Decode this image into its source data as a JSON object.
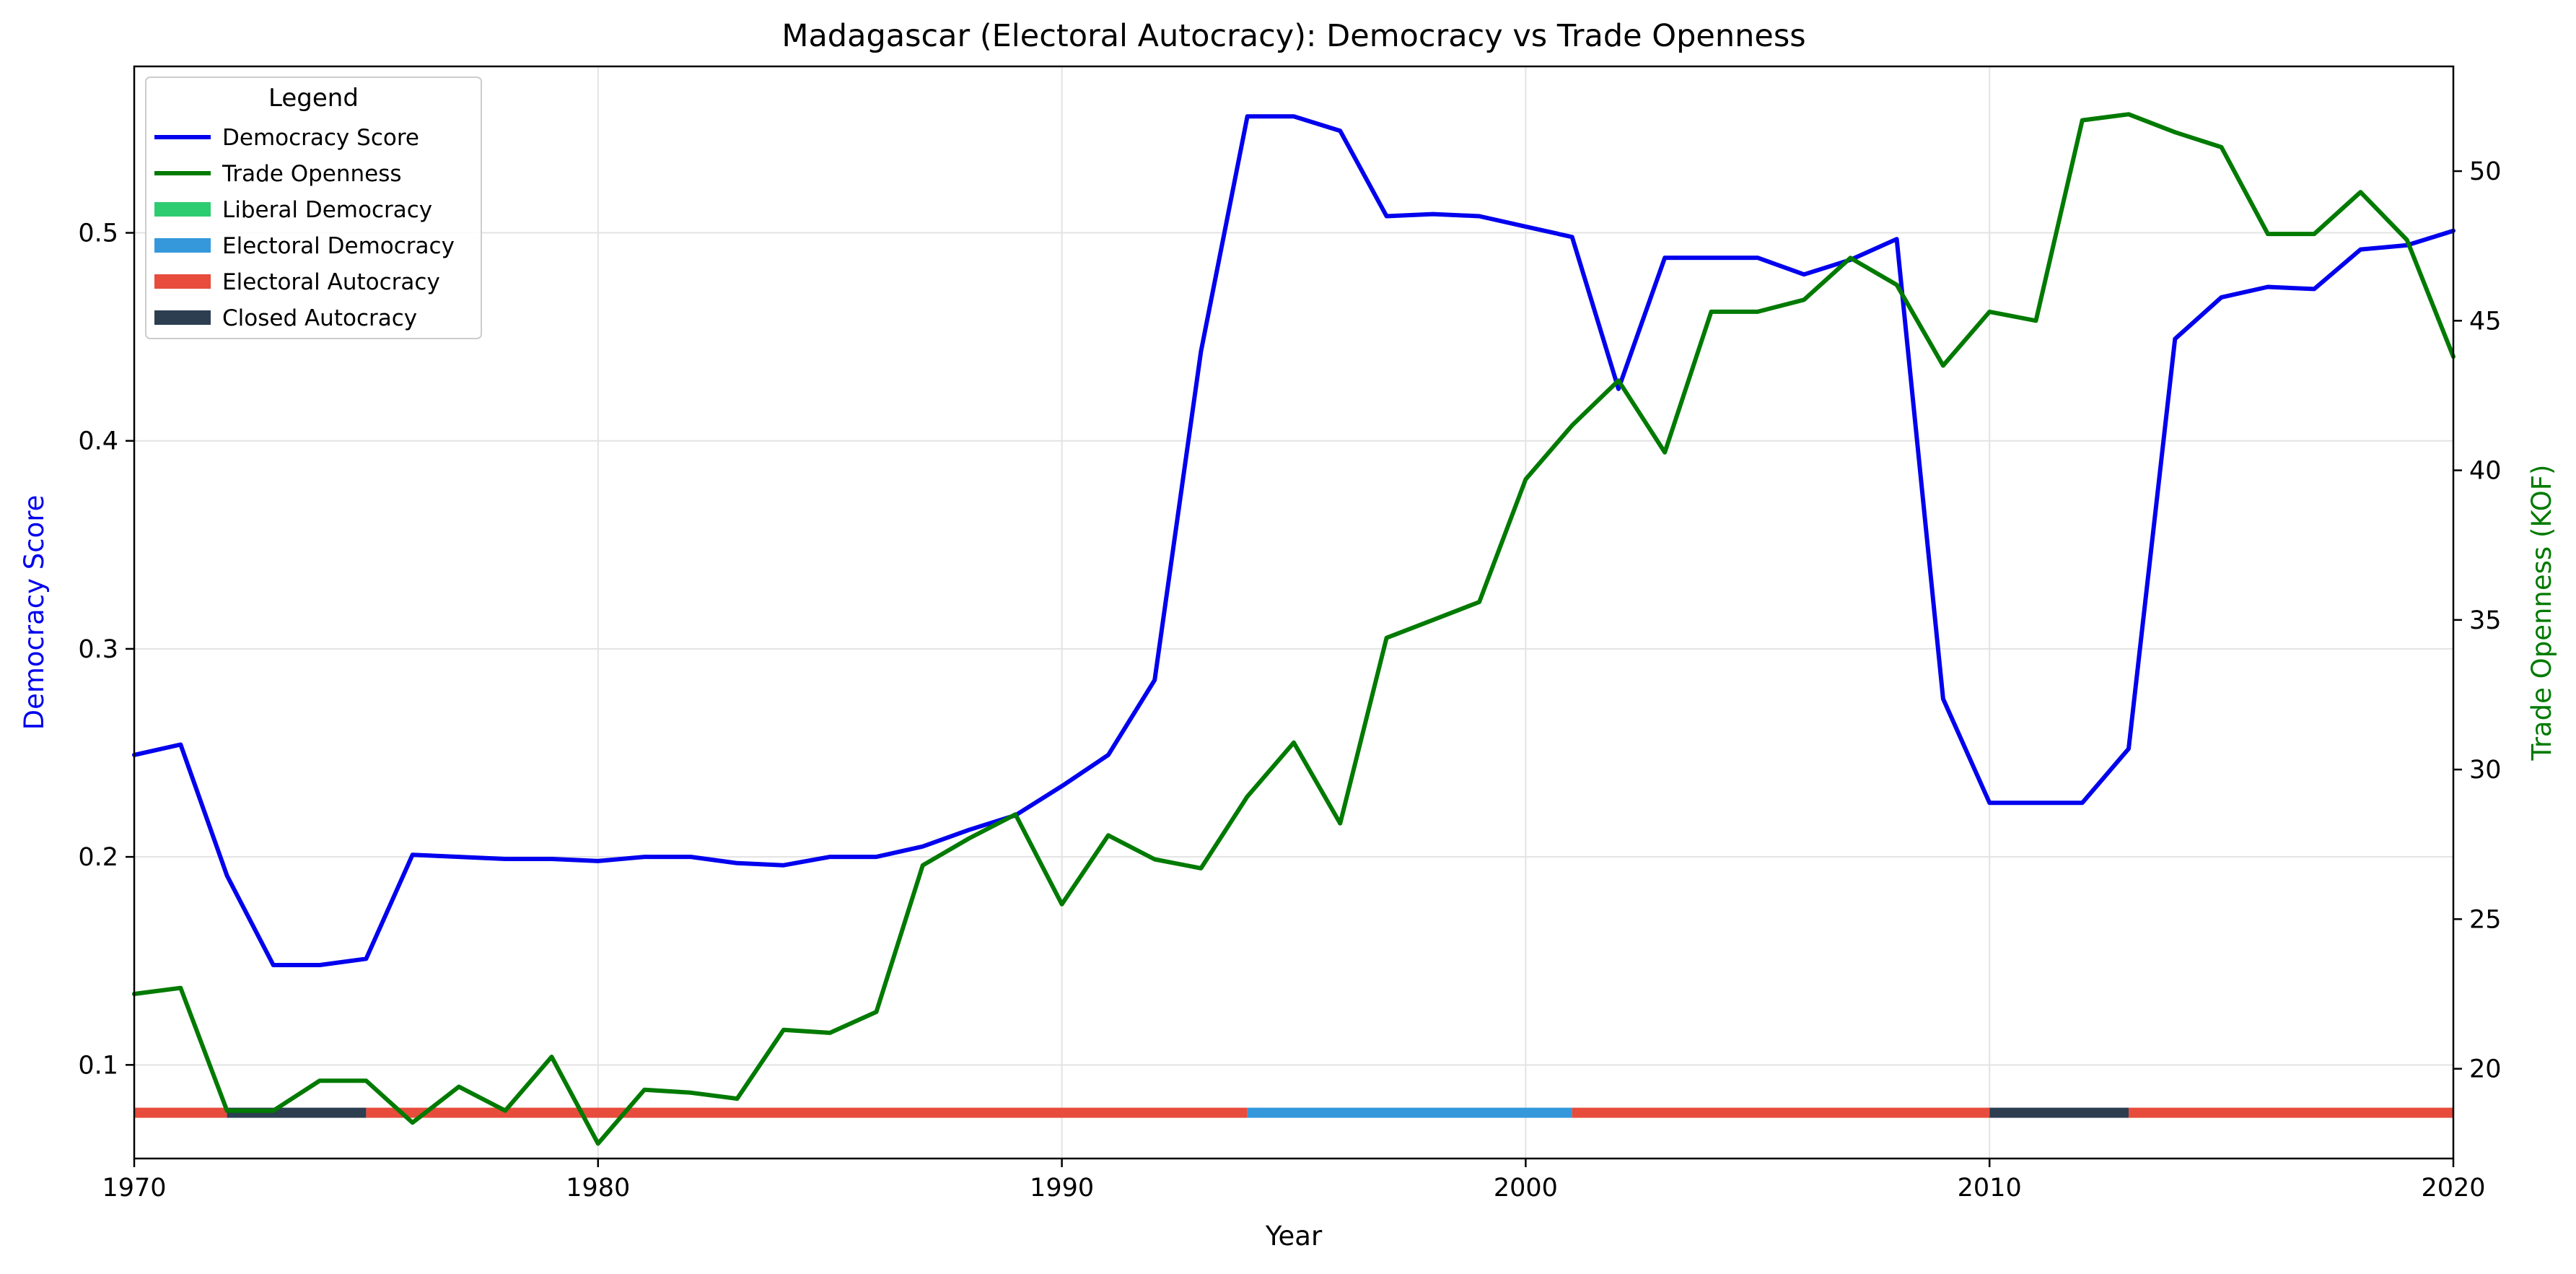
{
  "chart_data": {
    "type": "line",
    "title": "Madagascar (Electoral Autocracy): Democracy vs Trade Openness",
    "xlabel": "Year",
    "ylabel_left": "Democracy Score",
    "ylabel_right": "Trade Openness (KOF)",
    "xlim": [
      1970,
      2020
    ],
    "ylim_left": [
      0.055,
      0.58
    ],
    "ylim_right": [
      17.0,
      53.5
    ],
    "x_ticks": [
      1970,
      1980,
      1990,
      2000,
      2010,
      2020
    ],
    "y_ticks_left": [
      0.1,
      0.2,
      0.3,
      0.4,
      0.5
    ],
    "y_ticks_right": [
      20,
      25,
      30,
      35,
      40,
      45,
      50
    ],
    "grid": true,
    "legend": {
      "title": "Legend",
      "placement": "top-left",
      "entries": [
        {
          "label": "Democracy Score",
          "kind": "line",
          "color": "#0000ee"
        },
        {
          "label": "Trade Openness",
          "kind": "line",
          "color": "#007a00"
        },
        {
          "label": "Liberal Democracy",
          "kind": "patch",
          "color": "#2ecc71"
        },
        {
          "label": "Electoral Democracy",
          "kind": "patch",
          "color": "#3498db"
        },
        {
          "label": "Electoral Autocracy",
          "kind": "patch",
          "color": "#e74c3c"
        },
        {
          "label": "Closed Autocracy",
          "kind": "patch",
          "color": "#2c3e50"
        }
      ]
    },
    "series": [
      {
        "name": "Democracy Score",
        "axis": "left",
        "color": "#0000ee",
        "x": [
          1970,
          1971,
          1972,
          1973,
          1974,
          1975,
          1976,
          1977,
          1978,
          1979,
          1980,
          1981,
          1982,
          1983,
          1984,
          1985,
          1986,
          1987,
          1988,
          1989,
          1990,
          1991,
          1992,
          1993,
          1994,
          1995,
          1996,
          1997,
          1998,
          1999,
          2000,
          2001,
          2002,
          2003,
          2004,
          2005,
          2006,
          2007,
          2008,
          2009,
          2010,
          2011,
          2012,
          2013,
          2014,
          2015,
          2016,
          2017,
          2018,
          2019,
          2020
        ],
        "values": [
          0.249,
          0.254,
          0.191,
          0.148,
          0.148,
          0.151,
          0.201,
          0.2,
          0.199,
          0.199,
          0.198,
          0.2,
          0.2,
          0.197,
          0.196,
          0.2,
          0.2,
          0.205,
          0.213,
          0.22,
          0.234,
          0.249,
          0.285,
          0.443,
          0.556,
          0.556,
          0.549,
          0.508,
          0.509,
          0.508,
          0.503,
          0.498,
          0.425,
          0.488,
          0.488,
          0.488,
          0.48,
          0.487,
          0.497,
          0.276,
          0.226,
          0.226,
          0.226,
          0.252,
          0.449,
          0.469,
          0.474,
          0.473,
          0.492,
          0.494,
          0.501
        ]
      },
      {
        "name": "Trade Openness",
        "axis": "right",
        "color": "#007a00",
        "x": [
          1970,
          1971,
          1972,
          1973,
          1974,
          1975,
          1976,
          1977,
          1978,
          1979,
          1980,
          1981,
          1982,
          1983,
          1984,
          1985,
          1986,
          1987,
          1988,
          1989,
          1990,
          1991,
          1992,
          1993,
          1994,
          1995,
          1996,
          1997,
          1998,
          1999,
          2000,
          2001,
          2002,
          2003,
          2004,
          2005,
          2006,
          2007,
          2008,
          2009,
          2010,
          2011,
          2012,
          2013,
          2014,
          2015,
          2016,
          2017,
          2018,
          2019,
          2020
        ],
        "values": [
          22.5,
          22.7,
          18.6,
          18.6,
          19.6,
          19.6,
          18.2,
          19.4,
          18.6,
          20.4,
          17.5,
          19.3,
          19.2,
          19.0,
          21.3,
          21.2,
          21.9,
          26.8,
          27.7,
          28.5,
          25.5,
          27.8,
          27.0,
          26.7,
          29.1,
          30.9,
          28.2,
          34.4,
          35.0,
          35.6,
          39.7,
          41.5,
          43.0,
          40.6,
          45.3,
          45.3,
          45.7,
          47.1,
          46.2,
          43.5,
          45.3,
          45.0,
          51.7,
          51.9,
          51.3,
          50.8,
          47.9,
          47.9,
          49.3,
          47.7,
          43.8
        ]
      }
    ],
    "regime_bands": [
      {
        "start": 1970,
        "end": 1972,
        "regime": "Electoral Autocracy",
        "color": "#e74c3c"
      },
      {
        "start": 1972,
        "end": 1975,
        "regime": "Closed Autocracy",
        "color": "#2c3e50"
      },
      {
        "start": 1975,
        "end": 1994,
        "regime": "Electoral Autocracy",
        "color": "#e74c3c"
      },
      {
        "start": 1994,
        "end": 2001,
        "regime": "Electoral Democracy",
        "color": "#3498db"
      },
      {
        "start": 2001,
        "end": 2010,
        "regime": "Electoral Autocracy",
        "color": "#e74c3c"
      },
      {
        "start": 2010,
        "end": 2013,
        "regime": "Closed Autocracy",
        "color": "#2c3e50"
      },
      {
        "start": 2013,
        "end": 2020,
        "regime": "Electoral Autocracy",
        "color": "#e74c3c"
      }
    ],
    "regime_band_level": 0.077
  }
}
